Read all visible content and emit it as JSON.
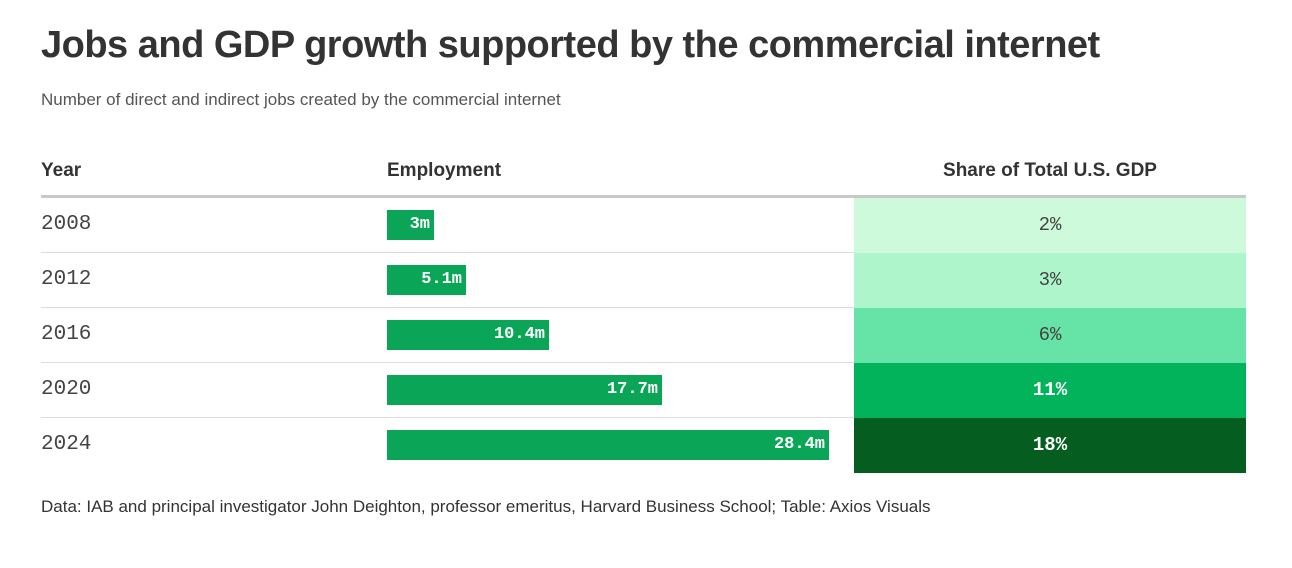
{
  "title": "Jobs and GDP growth supported by the commercial internet",
  "subtitle": "Number of direct and indirect jobs created by the commercial internet",
  "columns": {
    "year": "Year",
    "employment": "Employment",
    "gdp_share": "Share of Total U.S. GDP"
  },
  "source": "Data: IAB and principal investigator John Deighton, professor emeritus, Harvard Business School; Table: Axios Visuals",
  "colors": {
    "bar": "#0aa557",
    "gdp_scale": [
      "#ccfadb",
      "#aff5cb",
      "#66e3a6",
      "#02b35b",
      "#055e1f"
    ],
    "gdp_text_dark": "#444444",
    "gdp_text_light": "#ffffff"
  },
  "chart_data": {
    "type": "table",
    "title": "Jobs and GDP growth supported by the commercial internet",
    "subtitle": "Number of direct and indirect jobs created by the commercial internet",
    "columns": [
      "Year",
      "Employment",
      "Share of Total U.S. GDP"
    ],
    "employment_max": 28.4,
    "rows": [
      {
        "year": "2008",
        "employment": 3.0,
        "employment_label": "3m",
        "gdp_share": 2,
        "gdp_label": "2%"
      },
      {
        "year": "2012",
        "employment": 5.1,
        "employment_label": "5.1m",
        "gdp_share": 3,
        "gdp_label": "3%"
      },
      {
        "year": "2016",
        "employment": 10.4,
        "employment_label": "10.4m",
        "gdp_share": 6,
        "gdp_label": "6%"
      },
      {
        "year": "2020",
        "employment": 17.7,
        "employment_label": "17.7m",
        "gdp_share": 11,
        "gdp_label": "11%"
      },
      {
        "year": "2024",
        "employment": 28.4,
        "employment_label": "28.4m",
        "gdp_share": 18,
        "gdp_label": "18%"
      }
    ]
  }
}
